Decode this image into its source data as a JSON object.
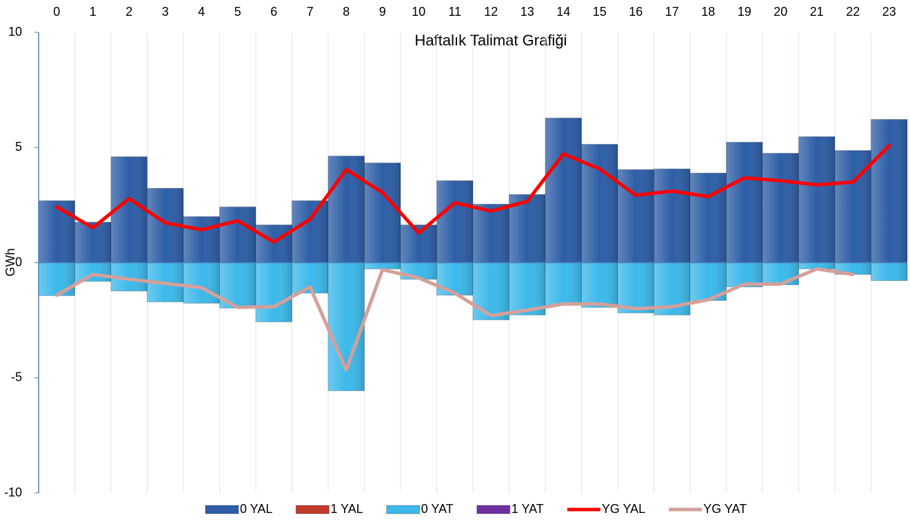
{
  "chart_data": {
    "type": "bar",
    "title": "Haftalık Talimat Grafiği",
    "y_label": "GWh",
    "categories": [
      "0",
      "1",
      "2",
      "3",
      "4",
      "5",
      "6",
      "7",
      "8",
      "9",
      "10",
      "11",
      "12",
      "13",
      "14",
      "15",
      "16",
      "17",
      "18",
      "19",
      "20",
      "21",
      "22",
      "23"
    ],
    "series": [
      {
        "name": "0 YAL",
        "type": "bar",
        "color": "#2e5ea6",
        "values": [
          2.69,
          1.76,
          4.6,
          3.23,
          2.0,
          2.42,
          1.64,
          2.69,
          4.63,
          4.33,
          1.64,
          3.56,
          2.54,
          2.96,
          6.28,
          5.14,
          4.04,
          4.07,
          3.89,
          5.23,
          4.75,
          5.47,
          4.87,
          6.22
        ]
      },
      {
        "name": "1 YAL",
        "type": "bar",
        "color": "#c0392b",
        "values": [
          0,
          0,
          0,
          0,
          0,
          0,
          0,
          0,
          0,
          0,
          0,
          0,
          0,
          0,
          0,
          0,
          0,
          0,
          0,
          0,
          0,
          0,
          0,
          0
        ]
      },
      {
        "name": "0 YAT",
        "type": "bar",
        "color": "#3cb9ea",
        "values": [
          -1.43,
          -0.81,
          -1.23,
          -1.7,
          -1.76,
          -1.97,
          -2.57,
          -1.32,
          -5.56,
          -0.27,
          -0.72,
          -1.41,
          -2.48,
          -2.27,
          -1.85,
          -1.94,
          -2.18,
          -2.27,
          -1.64,
          -1.05,
          -0.96,
          -0.27,
          -0.51,
          -0.78
        ]
      },
      {
        "name": "1 YAT",
        "type": "bar",
        "color": "#7030a0",
        "values": [
          0,
          0,
          0,
          0,
          0,
          0,
          0,
          0,
          0,
          0,
          0,
          0,
          0,
          0,
          0,
          0,
          0,
          0,
          0,
          0,
          0,
          0,
          0,
          0
        ]
      },
      {
        "name": "YG YAL",
        "type": "line",
        "color": "#ff0000",
        "values": [
          2.42,
          1.52,
          2.78,
          1.73,
          1.43,
          1.82,
          0.9,
          1.88,
          4.04,
          3.05,
          1.29,
          2.6,
          2.24,
          2.66,
          4.72,
          4.07,
          2.93,
          3.11,
          2.87,
          3.68,
          3.56,
          3.38,
          3.5,
          5.08
        ]
      },
      {
        "name": "YG YAT",
        "type": "line",
        "color": "#d4a09a",
        "values": [
          -1.41,
          -0.51,
          -0.72,
          -0.9,
          -1.08,
          -1.94,
          -1.91,
          -1.05,
          -4.66,
          -0.3,
          -0.66,
          -1.32,
          -2.3,
          -2.06,
          -1.79,
          -1.79,
          -2.0,
          -1.91,
          -1.61,
          -0.93,
          -0.93,
          -0.27,
          -0.51,
          null
        ]
      }
    ],
    "ylim": [
      -10,
      10
    ],
    "yticks": [
      -10,
      -5,
      0,
      5,
      10
    ],
    "xgrid": true,
    "legend": "bottom"
  }
}
